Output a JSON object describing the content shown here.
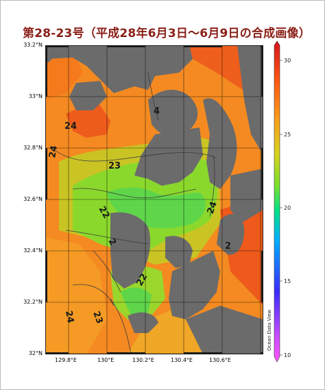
{
  "title": "第28-23号（平成28年6月3日～6月9日の合成画像）",
  "map": {
    "lat_labels": [
      "33.2°N",
      "33°N",
      "32.8°N",
      "32.6°N",
      "32.4°N",
      "32.2°N",
      "32°N"
    ],
    "lon_labels": [
      "129.8°E",
      "130°E",
      "130.2°E",
      "130.4°E",
      "130.6°E"
    ],
    "contour_labels": [
      "24",
      "24",
      "23",
      "22",
      "2",
      "22",
      "24",
      "24",
      "23",
      "2",
      "4"
    ],
    "credit": "Ocean Data View"
  },
  "colorbar": {
    "ticks": [
      "30",
      "25",
      "20",
      "15",
      "10"
    ],
    "range": [
      10,
      30
    ],
    "colors": [
      "#ff55ff",
      "#3a2cff",
      "#00b0ff",
      "#00e28a",
      "#7be02b",
      "#f7a21a",
      "#ff5b14",
      "#d8141e"
    ]
  },
  "colors": {
    "land": "#6b6b6b",
    "title": "#8a1f17"
  }
}
